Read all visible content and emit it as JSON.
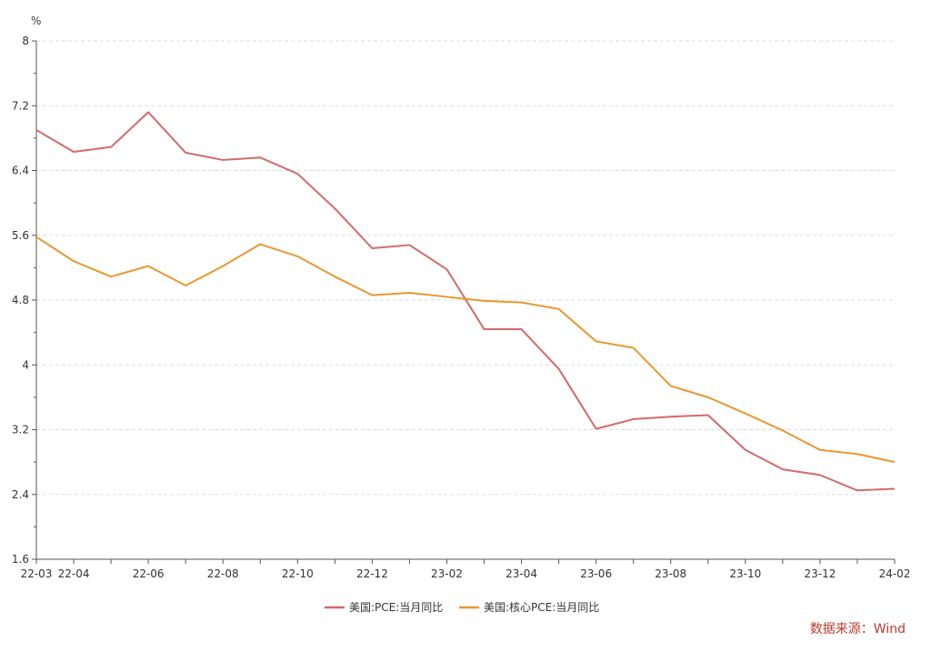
{
  "chart_data": {
    "type": "line",
    "yunit": "%",
    "ylim": [
      1.6,
      8
    ],
    "yticks": [
      "1.6",
      "2.4",
      "3.2",
      "4",
      "4.8",
      "5.6",
      "6.4",
      "7.2",
      "8"
    ],
    "x": [
      "22-03",
      "22-04",
      "22-05",
      "22-06",
      "22-07",
      "22-08",
      "22-09",
      "22-10",
      "22-11",
      "22-12",
      "23-01",
      "23-02",
      "23-03",
      "23-04",
      "23-05",
      "23-06",
      "23-07",
      "23-08",
      "23-09",
      "23-10",
      "23-11",
      "23-12",
      "24-01",
      "24-02"
    ],
    "xticks": [
      "22-03",
      "22-04",
      "22-06",
      "22-08",
      "22-10",
      "22-12",
      "23-02",
      "23-04",
      "23-06",
      "23-08",
      "23-10",
      "23-12",
      "24-02"
    ],
    "grid": true,
    "legend_position": "bottom",
    "series": [
      {
        "name": "美国:PCE:当月同比",
        "color": "#d46a6a",
        "values": [
          6.9,
          6.63,
          6.69,
          7.12,
          6.62,
          6.53,
          6.56,
          6.36,
          5.93,
          5.44,
          5.48,
          5.18,
          4.44,
          4.44,
          3.95,
          3.21,
          3.33,
          3.36,
          3.38,
          2.95,
          2.71,
          2.64,
          2.45,
          2.47
        ]
      },
      {
        "name": "美国:核心PCE:当月同比",
        "color": "#e8982e",
        "values": [
          5.58,
          5.28,
          5.09,
          5.22,
          4.98,
          5.22,
          5.49,
          5.34,
          5.09,
          4.86,
          4.89,
          4.84,
          4.79,
          4.77,
          4.69,
          4.29,
          4.21,
          3.74,
          3.6,
          3.4,
          3.19,
          2.95,
          2.9,
          2.8
        ]
      }
    ],
    "source": "数据来源：Wind"
  }
}
